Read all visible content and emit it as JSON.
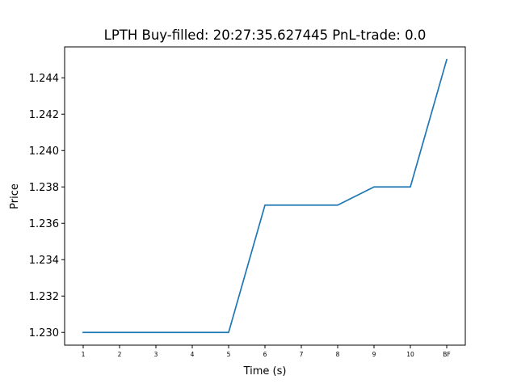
{
  "chart_data": {
    "type": "line",
    "title": "LPTH  Buy-filled:  20:27:35.627445  PnL-trade:  0.0",
    "xlabel": "Time (s)",
    "ylabel": "Price",
    "categories": [
      "1",
      "2",
      "3",
      "4",
      "5",
      "6",
      "7",
      "8",
      "9",
      "10",
      "BF"
    ],
    "series": [
      {
        "values": [
          1.23,
          1.23,
          1.23,
          1.23,
          1.23,
          1.237,
          1.237,
          1.237,
          1.238,
          1.238,
          1.245
        ],
        "color": "#1f77b4"
      }
    ],
    "ylim": [
      1.2293,
      1.2457
    ],
    "yticks": [
      "1.230",
      "1.232",
      "1.234",
      "1.236",
      "1.238",
      "1.240",
      "1.242",
      "1.244"
    ],
    "grid": false,
    "legend": "none"
  }
}
